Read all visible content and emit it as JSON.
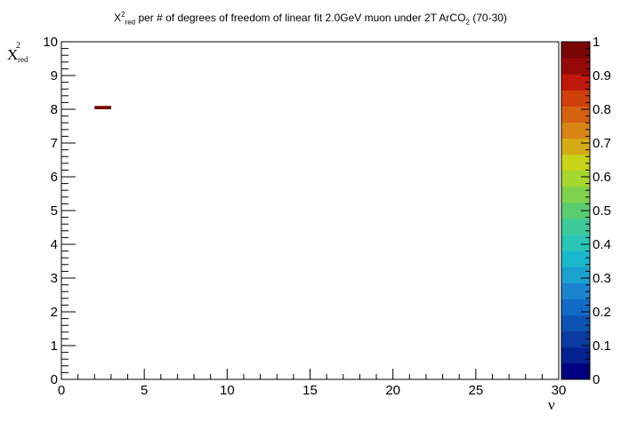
{
  "chart_data": {
    "type": "heatmap",
    "title": {
      "prefix": "X",
      "sup": "2",
      "sub": "red",
      "main": " per # of degrees of freedom of linear fit 2.0GeV muon under 2T ArCO",
      "co2_sub": "2",
      "suffix": " (70-30)"
    },
    "xlabel": "ν",
    "ylabel": {
      "base": "X",
      "sup": "2",
      "sub": "red"
    },
    "xlim": [
      0,
      30
    ],
    "ylim": [
      0,
      10
    ],
    "x_ticks": [
      "0",
      "5",
      "10",
      "15",
      "20",
      "25",
      "30"
    ],
    "y_ticks": [
      "0",
      "1",
      "2",
      "3",
      "4",
      "5",
      "6",
      "7",
      "8",
      "9",
      "10"
    ],
    "colorbar": {
      "range": [
        0,
        1
      ],
      "tick_labels": [
        "0",
        "0.1",
        "0.2",
        "0.3",
        "0.4",
        "0.5",
        "0.6",
        "0.7",
        "0.8",
        "0.9",
        "1"
      ],
      "colors": [
        "#000080",
        "#05218f",
        "#0b3aa0",
        "#0d52b2",
        "#116ac6",
        "#1a84d1",
        "#1ba0d0",
        "#1ab8cc",
        "#2ac6b5",
        "#3dc99a",
        "#58cc6f",
        "#7fd24d",
        "#a5d72e",
        "#c8d418",
        "#d4ab15",
        "#d88515",
        "#d5620f",
        "#cf3f0b",
        "#c0170b",
        "#960909",
        "#7a0606"
      ]
    },
    "cells": [
      {
        "x": [
          2,
          3
        ],
        "y": [
          8.0,
          8.1
        ],
        "value": 1.0
      }
    ]
  }
}
